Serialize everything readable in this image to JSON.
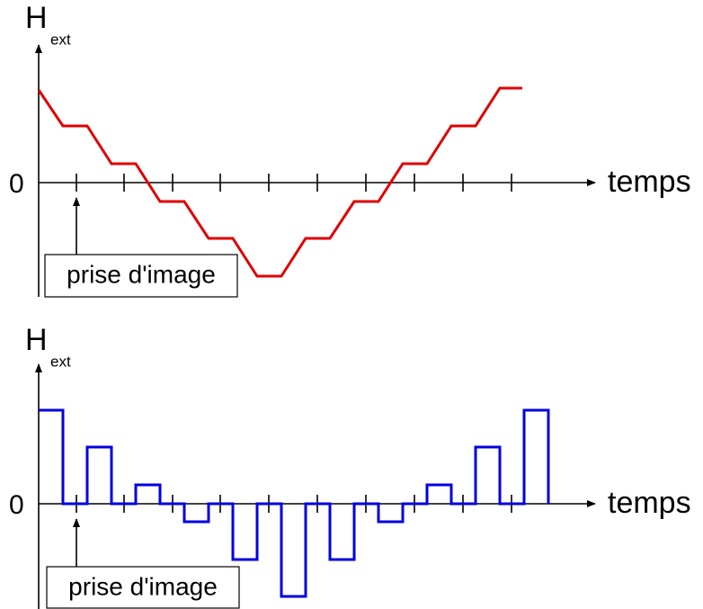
{
  "panels": [
    {
      "axis_label": "H",
      "axis_subscript": "ext",
      "zero_label": "0",
      "x_label": "temps",
      "annotation": "prise d'image"
    },
    {
      "axis_label": "H",
      "axis_subscript": "ext",
      "zero_label": "0",
      "x_label": "temps",
      "annotation": "prise d'image"
    }
  ]
}
